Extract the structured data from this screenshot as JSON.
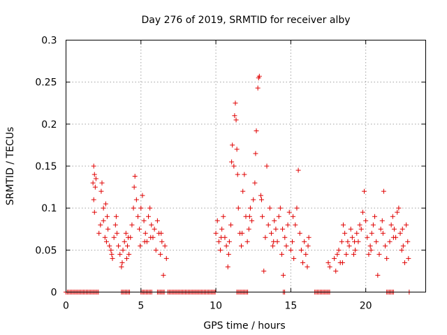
{
  "chart_data": {
    "type": "scatter",
    "title": "Day 276 of 2019, SRMTID for receiver alby",
    "xlabel": "GPS time / hours",
    "ylabel": "SRMTID / TECUs",
    "xlim": [
      0,
      24
    ],
    "ylim": [
      0,
      0.3
    ],
    "x_ticks": [
      0,
      5,
      10,
      15,
      20
    ],
    "x_tick_labels": [
      "0",
      "5",
      "10",
      "15",
      "20"
    ],
    "y_ticks": [
      0,
      0.05,
      0.1,
      0.15,
      0.2,
      0.25,
      0.3
    ],
    "y_tick_labels": [
      "0",
      "0.05",
      "0.1",
      "0.15",
      "0.2",
      "0.25",
      "0.3"
    ],
    "grid": true,
    "marker": "plus",
    "marker_color": "#e00000",
    "series": [
      {
        "name": "SRMTID",
        "points": [
          [
            1.85,
            0.15
          ],
          [
            1.9,
            0.14
          ],
          [
            1.95,
            0.125
          ],
          [
            1.8,
            0.13
          ],
          [
            1.85,
            0.11
          ],
          [
            1.9,
            0.095
          ],
          [
            2.0,
            0.135
          ],
          [
            2.2,
            0.07
          ],
          [
            2.3,
            0.08
          ],
          [
            2.35,
            0.12
          ],
          [
            2.4,
            0.13
          ],
          [
            2.5,
            0.085
          ],
          [
            2.6,
            0.065
          ],
          [
            2.7,
            0.06
          ],
          [
            2.75,
            0.09
          ],
          [
            2.8,
            0.075
          ],
          [
            2.9,
            0.055
          ],
          [
            3.0,
            0.05
          ],
          [
            3.1,
            0.04
          ],
          [
            3.2,
            0.065
          ],
          [
            3.3,
            0.08
          ],
          [
            3.4,
            0.07
          ],
          [
            3.5,
            0.055
          ],
          [
            3.6,
            0.045
          ],
          [
            3.7,
            0.03
          ],
          [
            3.8,
            0.05
          ],
          [
            3.9,
            0.06
          ],
          [
            4.0,
            0.07
          ],
          [
            4.1,
            0.055
          ],
          [
            4.2,
            0.045
          ],
          [
            4.3,
            0.065
          ],
          [
            4.4,
            0.08
          ],
          [
            4.5,
            0.1
          ],
          [
            4.55,
            0.125
          ],
          [
            4.6,
            0.138
          ],
          [
            4.7,
            0.11
          ],
          [
            4.8,
            0.09
          ],
          [
            4.9,
            0.075
          ],
          [
            5.0,
            0.1
          ],
          [
            5.1,
            0.115
          ],
          [
            5.2,
            0.085
          ],
          [
            5.3,
            0.07
          ],
          [
            5.4,
            0.06
          ],
          [
            5.5,
            0.09
          ],
          [
            5.6,
            0.1
          ],
          [
            5.7,
            0.08
          ],
          [
            5.8,
            0.065
          ],
          [
            5.9,
            0.075
          ],
          [
            6.0,
            0.05
          ],
          [
            6.1,
            0.085
          ],
          [
            6.2,
            0.07
          ],
          [
            6.3,
            0.045
          ],
          [
            6.4,
            0.06
          ],
          [
            6.5,
            0.02
          ],
          [
            6.6,
            0.055
          ],
          [
            6.7,
            0.04
          ],
          [
            2.5,
            0.1
          ],
          [
            2.65,
            0.105
          ],
          [
            3.35,
            0.09
          ],
          [
            4.15,
            0.065
          ],
          [
            5.25,
            0.06
          ],
          [
            3.05,
            0.045
          ],
          [
            3.75,
            0.035
          ],
          [
            4.05,
            0.04
          ],
          [
            4.95,
            0.055
          ],
          [
            5.65,
            0.065
          ],
          [
            6.35,
            0.07
          ],
          [
            10.0,
            0.07
          ],
          [
            10.1,
            0.085
          ],
          [
            10.2,
            0.06
          ],
          [
            10.3,
            0.05
          ],
          [
            10.4,
            0.075
          ],
          [
            10.5,
            0.09
          ],
          [
            10.6,
            0.065
          ],
          [
            10.7,
            0.055
          ],
          [
            10.8,
            0.03
          ],
          [
            10.9,
            0.06
          ],
          [
            11.0,
            0.08
          ],
          [
            11.05,
            0.155
          ],
          [
            11.1,
            0.175
          ],
          [
            11.2,
            0.15
          ],
          [
            11.25,
            0.21
          ],
          [
            11.3,
            0.225
          ],
          [
            11.35,
            0.205
          ],
          [
            11.4,
            0.17
          ],
          [
            11.5,
            0.1
          ],
          [
            11.6,
            0.07
          ],
          [
            11.7,
            0.055
          ],
          [
            11.8,
            0.12
          ],
          [
            11.9,
            0.14
          ],
          [
            12.0,
            0.09
          ],
          [
            12.1,
            0.06
          ],
          [
            12.2,
            0.075
          ],
          [
            12.3,
            0.1
          ],
          [
            12.4,
            0.085
          ],
          [
            12.5,
            0.11
          ],
          [
            12.6,
            0.13
          ],
          [
            12.65,
            0.165
          ],
          [
            12.7,
            0.192
          ],
          [
            12.8,
            0.243
          ],
          [
            12.85,
            0.255
          ],
          [
            12.9,
            0.257
          ],
          [
            13.0,
            0.115
          ],
          [
            13.1,
            0.09
          ],
          [
            13.2,
            0.025
          ],
          [
            13.3,
            0.065
          ],
          [
            13.4,
            0.15
          ],
          [
            13.5,
            0.08
          ],
          [
            13.6,
            0.1
          ],
          [
            13.7,
            0.07
          ],
          [
            13.8,
            0.055
          ],
          [
            13.9,
            0.085
          ],
          [
            14.0,
            0.075
          ],
          [
            14.1,
            0.06
          ],
          [
            14.2,
            0.09
          ],
          [
            14.3,
            0.1
          ],
          [
            14.4,
            0.045
          ],
          [
            14.5,
            0.02
          ],
          [
            14.6,
            0.065
          ],
          [
            14.7,
            0.055
          ],
          [
            14.8,
            0.08
          ],
          [
            14.9,
            0.095
          ],
          [
            15.0,
            0.05
          ],
          [
            15.1,
            0.06
          ],
          [
            15.2,
            0.04
          ],
          [
            15.3,
            0.08
          ],
          [
            15.4,
            0.1
          ],
          [
            15.5,
            0.145
          ],
          [
            15.6,
            0.07
          ],
          [
            15.7,
            0.05
          ],
          [
            15.8,
            0.035
          ],
          [
            15.9,
            0.06
          ],
          [
            16.0,
            0.045
          ],
          [
            16.1,
            0.03
          ],
          [
            16.15,
            0.055
          ],
          [
            16.2,
            0.065
          ],
          [
            11.45,
            0.14
          ],
          [
            12.25,
            0.09
          ],
          [
            13.05,
            0.11
          ],
          [
            10.35,
            0.065
          ],
          [
            10.85,
            0.045
          ],
          [
            11.75,
            0.07
          ],
          [
            13.85,
            0.06
          ],
          [
            14.45,
            0.075
          ],
          [
            15.15,
            0.09
          ],
          [
            17.5,
            0.035
          ],
          [
            17.6,
            0.03
          ],
          [
            17.9,
            0.04
          ],
          [
            18.0,
            0.025
          ],
          [
            18.1,
            0.045
          ],
          [
            18.2,
            0.05
          ],
          [
            18.3,
            0.035
          ],
          [
            18.4,
            0.06
          ],
          [
            18.5,
            0.08
          ],
          [
            18.6,
            0.07
          ],
          [
            18.7,
            0.045
          ],
          [
            18.8,
            0.06
          ],
          [
            18.9,
            0.055
          ],
          [
            19.0,
            0.075
          ],
          [
            19.1,
            0.065
          ],
          [
            19.2,
            0.045
          ],
          [
            19.3,
            0.05
          ],
          [
            19.4,
            0.07
          ],
          [
            19.5,
            0.06
          ],
          [
            19.6,
            0.08
          ],
          [
            19.7,
            0.075
          ],
          [
            19.8,
            0.095
          ],
          [
            19.9,
            0.12
          ],
          [
            20.0,
            0.085
          ],
          [
            20.1,
            0.065
          ],
          [
            20.2,
            0.045
          ],
          [
            20.3,
            0.055
          ],
          [
            20.4,
            0.07
          ],
          [
            20.5,
            0.08
          ],
          [
            20.6,
            0.09
          ],
          [
            20.7,
            0.06
          ],
          [
            20.8,
            0.02
          ],
          [
            20.9,
            0.045
          ],
          [
            21.0,
            0.075
          ],
          [
            21.1,
            0.085
          ],
          [
            21.2,
            0.12
          ],
          [
            21.3,
            0.055
          ],
          [
            21.4,
            0.04
          ],
          [
            21.6,
            0.06
          ],
          [
            21.7,
            0.08
          ],
          [
            21.8,
            0.09
          ],
          [
            21.9,
            0.075
          ],
          [
            22.0,
            0.065
          ],
          [
            22.1,
            0.095
          ],
          [
            22.2,
            0.1
          ],
          [
            22.3,
            0.07
          ],
          [
            22.4,
            0.05
          ],
          [
            22.5,
            0.055
          ],
          [
            22.6,
            0.035
          ],
          [
            22.7,
            0.08
          ],
          [
            22.8,
            0.06
          ],
          [
            22.85,
            0.04
          ],
          [
            18.45,
            0.035
          ],
          [
            19.25,
            0.06
          ],
          [
            20.35,
            0.05
          ],
          [
            21.15,
            0.07
          ],
          [
            21.85,
            0.065
          ],
          [
            22.45,
            0.075
          ]
        ],
        "zero_runs": [
          [
            0,
            2.2
          ],
          [
            3.7,
            4.3
          ],
          [
            5.0,
            5.8
          ],
          [
            6.1,
            6.6
          ],
          [
            6.8,
            10.0
          ],
          [
            11.4,
            12.2
          ],
          [
            14.5,
            14.6
          ],
          [
            16.6,
            17.6
          ],
          [
            21.4,
            21.9
          ],
          [
            22.9,
            22.95
          ]
        ]
      }
    ]
  }
}
